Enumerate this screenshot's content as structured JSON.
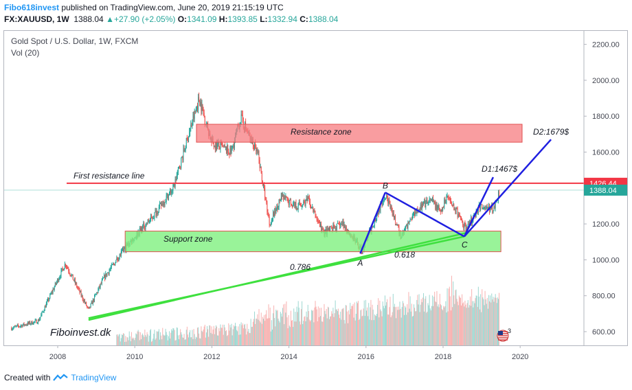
{
  "header": {
    "publisher": "Fibo618invest",
    "published_text": " published on TradingView.com, June 20, 2019 21:15:19 UTC",
    "symbol": "FX:XAUUSD, 1W",
    "last": "1388.04",
    "change": "+27.90 (+2.05%)",
    "open_label": "O:",
    "open": "1341.09",
    "high_label": "H:",
    "high": "1393.85",
    "low_label": "L:",
    "low": "1332.94",
    "close_label": "C:",
    "close": "1388.04"
  },
  "chart_title": "Gold Spot / U.S. Dollar, 1W, FXCM",
  "volume_label": "Vol (20)",
  "footer": {
    "created_with": "Created with",
    "brand": "TradingView"
  },
  "colors": {
    "up": "#26a69a",
    "down": "#ef5350",
    "resistance_line": "#f23645",
    "current_price": "#26a69a",
    "resistance_zone": "#f77c80",
    "support_zone": "#7ff07f",
    "trend": "#1f1fe0",
    "support_trend": "#3ee03e"
  },
  "chart_data": {
    "type": "candlestick",
    "x_ticks": [
      "2008",
      "2010",
      "2012",
      "2014",
      "2016",
      "2018",
      "2020"
    ],
    "y_ticks": [
      "600.00",
      "800.00",
      "1000.00",
      "1200.00",
      "1400.00",
      "1600.00",
      "1800.00",
      "2000.00",
      "2200.00"
    ],
    "ylim": [
      520,
      2270
    ],
    "xlim": [
      2006.75,
      2021.3
    ],
    "price_path": [
      [
        2006.8,
        620
      ],
      [
        2007.5,
        660
      ],
      [
        2008.2,
        980
      ],
      [
        2008.8,
        720
      ],
      [
        2009.2,
        900
      ],
      [
        2009.8,
        1080
      ],
      [
        2010.5,
        1250
      ],
      [
        2011.0,
        1400
      ],
      [
        2011.67,
        1900
      ],
      [
        2012.0,
        1650
      ],
      [
        2012.5,
        1600
      ],
      [
        2012.75,
        1790
      ],
      [
        2013.2,
        1580
      ],
      [
        2013.5,
        1200
      ],
      [
        2013.8,
        1350
      ],
      [
        2014.2,
        1300
      ],
      [
        2014.5,
        1330
      ],
      [
        2014.9,
        1150
      ],
      [
        2015.4,
        1200
      ],
      [
        2015.9,
        1050
      ],
      [
        2016.5,
        1370
      ],
      [
        2016.9,
        1130
      ],
      [
        2017.3,
        1280
      ],
      [
        2017.7,
        1330
      ],
      [
        2017.95,
        1260
      ],
      [
        2018.1,
        1360
      ],
      [
        2018.6,
        1170
      ],
      [
        2018.95,
        1300
      ],
      [
        2019.3,
        1280
      ],
      [
        2019.47,
        1388
      ]
    ],
    "last_price": {
      "label": "1388.04",
      "value": 1388.04
    },
    "resistance_line": {
      "label": "1426.44",
      "value": 1426.44
    },
    "annotations": {
      "first_resistance": "First resistance line",
      "resistance_zone": "Resistance zone",
      "support_zone": "Support zone",
      "label_a": "A",
      "label_b": "B",
      "label_c": "C",
      "fib_1": "0.786",
      "fib_2": "0.618",
      "d1": "D1:1467$",
      "d2": "D2:1679$",
      "watermark": "Fiboinvest.dk"
    },
    "zones": {
      "resistance": {
        "x": [
          2011.6,
          2020.05
        ],
        "y": [
          1655,
          1755
        ]
      },
      "support": {
        "x": [
          2009.75,
          2019.5
        ],
        "y": [
          1045,
          1160
        ]
      }
    },
    "pattern": {
      "A": [
        2015.85,
        1035
      ],
      "B": [
        2016.5,
        1375
      ],
      "C": [
        2018.55,
        1130
      ],
      "D1": [
        2019.3,
        1460
      ],
      "D2": [
        2020.8,
        1670
      ]
    },
    "support_trend_lines": [
      [
        [
          2008.8,
          675
        ],
        [
          2018.55,
          1130
        ]
      ],
      [
        [
          2008.8,
          665
        ],
        [
          2018.6,
          1150
        ]
      ]
    ]
  }
}
